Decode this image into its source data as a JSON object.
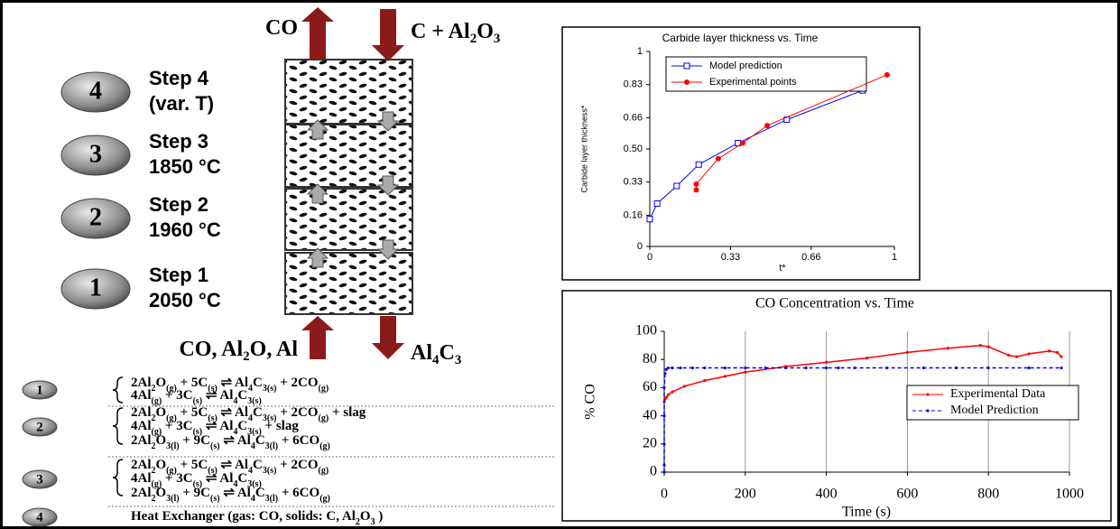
{
  "top_labels": {
    "left": [
      "CO"
    ],
    "right": [
      "C + Al",
      "2",
      "O",
      "3"
    ]
  },
  "bottom_labels": {
    "left": [
      "CO, Al",
      "2",
      "O, Al"
    ],
    "right": [
      "Al",
      "4",
      "C",
      "3"
    ]
  },
  "steps": [
    {
      "number": "4",
      "title": "Step 4",
      "subtitle": "(var. T)"
    },
    {
      "number": "3",
      "title": "Step 3",
      "subtitle": "1850 °C"
    },
    {
      "number": "2",
      "title": "Step 2",
      "subtitle": "1960 °C"
    },
    {
      "number": "1",
      "title": "Step 1",
      "subtitle": "2050 °C"
    }
  ],
  "reactions": [
    {
      "number": "1",
      "lines": [
        [
          "2Al",
          "2",
          "O",
          "(g)",
          " + 5C",
          "(s)",
          " ⇌ Al",
          "4",
          "C",
          "3(s)",
          " + 2CO",
          "(g)"
        ],
        [
          "4Al",
          "(g)",
          " + 3C",
          "(s)",
          " ⇌ Al",
          "4",
          "C",
          "3(s)"
        ]
      ]
    },
    {
      "number": "2",
      "lines": [
        [
          "2Al",
          "2",
          "O",
          "(g)",
          " + 5C",
          "(s)",
          " ⇌ Al",
          "4",
          "C",
          "3(s)",
          " + 2CO",
          "(g)",
          " + slag"
        ],
        [
          "4Al",
          "(g)",
          " + 3C",
          "(s)",
          " ⇌ Al",
          "4",
          "C",
          "3(s)",
          " + slag"
        ],
        [
          "2Al",
          "2",
          "O",
          "3(l)",
          " + 9C",
          "(s)",
          " ⇌ Al",
          "4",
          "C",
          "3(l)",
          " + 6CO",
          "(g)"
        ]
      ]
    },
    {
      "number": "3",
      "lines": [
        [
          "2Al",
          "2",
          "O",
          "(g)",
          " + 5C",
          "(s)",
          " ⇌ Al",
          "4",
          "C",
          "3(s)",
          " + 2CO",
          "(g)"
        ],
        [
          "4Al",
          "(g)",
          " + 3C",
          "(s)",
          " ⇌ Al",
          "4",
          "C",
          "3(s)"
        ],
        [
          "2Al",
          "2",
          "O",
          "3(l)",
          " + 9C",
          "(s)",
          " ⇌ Al",
          "4",
          "C",
          "3(l)",
          " + 6CO",
          "(g)"
        ]
      ]
    },
    {
      "number": "4",
      "lines": [
        [
          "Heat Exchanger (gas: CO, solids: C, Al",
          "2",
          "O",
          "3",
          " )"
        ]
      ]
    }
  ],
  "chart_data": [
    {
      "type": "line",
      "title": "Carbide layer thickness vs. Time",
      "x_label": "t*",
      "y_label": "Carbide layer thickness*",
      "xlim": [
        0,
        1
      ],
      "xticks": [
        0,
        0.33,
        0.66,
        1
      ],
      "ylim": [
        0,
        1
      ],
      "yticks": [
        0,
        0.16,
        0.33,
        {
          "value": 0.5,
          "label": "0.50"
        },
        0.66,
        0.83,
        1
      ],
      "grid": false,
      "legend": "upper left",
      "series": [
        {
          "name": "Model prediction",
          "color": "#0000ff",
          "marker": "square",
          "linestyle": "solid",
          "x": [
            0,
            0.03,
            0.11,
            0.2,
            0.36,
            0.56,
            0.87
          ],
          "values": [
            0.14,
            0.22,
            0.31,
            0.42,
            0.53,
            0.65,
            0.8
          ]
        },
        {
          "name": "Experimental points",
          "color": "#ff0000",
          "marker": "circle",
          "linestyle": "solid",
          "x": [
            0.19,
            0.19,
            0.28,
            0.38,
            0.48,
            0.97
          ],
          "values": [
            0.29,
            0.32,
            0.45,
            0.53,
            0.62,
            0.88
          ]
        }
      ]
    },
    {
      "type": "line",
      "title": "CO Concentration vs. Time",
      "x_label": "Time (s)",
      "y_label": "% CO",
      "xlim": [
        0,
        1000
      ],
      "xticks": [
        0,
        200,
        400,
        600,
        800,
        1000
      ],
      "ylim": [
        0,
        100
      ],
      "yticks": [
        0,
        20,
        40,
        60,
        80,
        100
      ],
      "grid": "x",
      "legend": "center right",
      "series": [
        {
          "name": "Experimental Data",
          "color": "#ff0000",
          "marker": "circle",
          "linestyle": "solid",
          "x": [
            0,
            2,
            5,
            10,
            20,
            50,
            100,
            150,
            200,
            300,
            400,
            500,
            600,
            700,
            780,
            800,
            850,
            870,
            900,
            950,
            970,
            980
          ],
          "values": [
            50,
            52,
            53,
            55,
            57,
            61,
            65,
            68,
            71,
            75,
            78,
            81,
            85,
            88,
            90,
            89,
            83,
            82,
            84,
            86,
            85,
            82
          ]
        },
        {
          "name": "Model Prediction",
          "color": "#0000ff",
          "marker": "circle",
          "linestyle": "dashed",
          "x": [
            0,
            0,
            0,
            0,
            0,
            2,
            5,
            10,
            20,
            40,
            70,
            100,
            150,
            200,
            250,
            300,
            350,
            400,
            430,
            470,
            550,
            640,
            720,
            800,
            900,
            980
          ],
          "values": [
            0,
            5,
            20,
            40,
            60,
            70,
            73,
            74,
            74,
            74,
            74,
            74,
            74,
            74,
            74,
            74,
            74,
            74,
            74,
            74,
            74,
            74,
            74,
            74,
            74,
            74
          ]
        }
      ]
    }
  ]
}
